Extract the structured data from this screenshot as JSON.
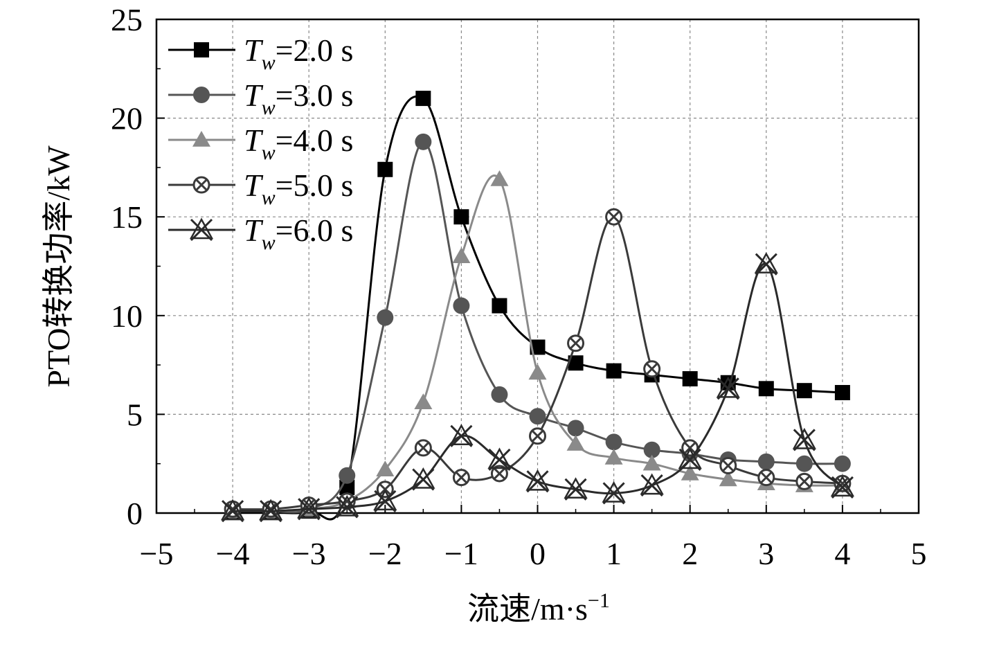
{
  "chart_data": {
    "type": "line",
    "xlabel": "流速/m·s",
    "xlabel_sup": "−1",
    "ylabel": "PTO转换功率/kW",
    "xlim": [
      -5,
      5
    ],
    "ylim": [
      0,
      25
    ],
    "x_ticks": [
      -5,
      -4,
      -3,
      -2,
      -1,
      0,
      1,
      2,
      3,
      4,
      5
    ],
    "x_tick_labels": [
      "−5",
      "−4",
      "−3",
      "−2",
      "−1",
      "0",
      "1",
      "2",
      "3",
      "4",
      "5"
    ],
    "y_ticks": [
      0,
      5,
      10,
      15,
      20,
      25
    ],
    "y_tick_labels": [
      "0",
      "5",
      "10",
      "15",
      "20",
      "25"
    ],
    "grid": true,
    "legend_position": "top-left",
    "x": [
      -4,
      -3.5,
      -3,
      -2.5,
      -2,
      -1.5,
      -1,
      -0.5,
      0,
      0.5,
      1,
      1.5,
      2,
      2.5,
      3,
      3.5,
      4
    ],
    "series": [
      {
        "name_symbol": "T",
        "name_sub": "w",
        "name_rest": "=2.0 s",
        "marker": "square",
        "color": "#000000",
        "values": [
          0.05,
          0.05,
          0.1,
          1.3,
          17.4,
          21.0,
          15.0,
          10.5,
          8.4,
          7.6,
          7.2,
          7.0,
          6.8,
          6.6,
          6.3,
          6.2,
          6.1
        ]
      },
      {
        "name_symbol": "T",
        "name_sub": "w",
        "name_rest": "=3.0 s",
        "marker": "circle",
        "color": "#555555",
        "values": [
          0.1,
          0.1,
          0.2,
          1.9,
          9.9,
          18.8,
          10.5,
          6.0,
          4.9,
          4.3,
          3.6,
          3.2,
          3.0,
          2.7,
          2.6,
          2.5,
          2.5
        ]
      },
      {
        "name_symbol": "T",
        "name_sub": "w",
        "name_rest": "=4.0 s",
        "marker": "triangle",
        "color": "#8a8a8a",
        "values": [
          0.1,
          0.1,
          0.2,
          0.6,
          2.2,
          5.6,
          13.0,
          16.9,
          7.1,
          3.5,
          2.8,
          2.5,
          2.0,
          1.7,
          1.5,
          1.4,
          1.4
        ]
      },
      {
        "name_symbol": "T",
        "name_sub": "w",
        "name_rest": "=5.0 s",
        "marker": "circle-x",
        "color": "#3a3a3a",
        "values": [
          0.2,
          0.2,
          0.4,
          0.6,
          1.2,
          3.3,
          1.8,
          2.0,
          3.9,
          8.6,
          15.0,
          7.3,
          3.3,
          2.4,
          1.8,
          1.6,
          1.5
        ]
      },
      {
        "name_symbol": "T",
        "name_sub": "w",
        "name_rest": "=6.0 s",
        "marker": "x-triangle",
        "color": "#2a2a2a",
        "values": [
          0.1,
          0.1,
          0.2,
          0.3,
          0.6,
          1.7,
          3.9,
          2.7,
          1.6,
          1.2,
          1.0,
          1.4,
          2.7,
          6.3,
          12.6,
          3.7,
          1.3
        ]
      }
    ]
  }
}
